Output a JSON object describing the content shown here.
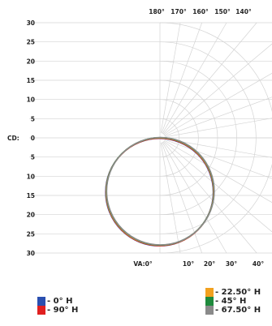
{
  "chart_data": {
    "type": "polar-photometric",
    "radial_label": "CD:",
    "radial_ticks": [
      "30",
      "25",
      "20",
      "15",
      "10",
      "5",
      "0",
      "5",
      "10",
      "15",
      "20",
      "25",
      "30"
    ],
    "angle_ticks_top": [
      "180°",
      "170°",
      "160°",
      "150°",
      "140°"
    ],
    "angle_ticks_bottom": [
      "VA:0°",
      "10°",
      "20°",
      "30°",
      "40°"
    ],
    "grid": true,
    "series": [
      {
        "name": "- 0° H",
        "color": "#2a4fb0",
        "shape": "circle",
        "center_cd": [
          0,
          -14
        ],
        "radius_cd": 14
      },
      {
        "name": "- 90° H",
        "color": "#e02020",
        "shape": "circle",
        "center_cd": [
          0,
          -14
        ],
        "radius_cd": 14
      },
      {
        "name": "- 22.50° H",
        "color": "#f2a11f",
        "shape": "circle",
        "center_cd": [
          0,
          -14
        ],
        "radius_cd": 14
      },
      {
        "name": "- 45° H",
        "color": "#1f8a3c",
        "shape": "circle",
        "center_cd": [
          0,
          -14
        ],
        "radius_cd": 14
      },
      {
        "name": "- 67.50° H",
        "color": "#8a8a8a",
        "shape": "circle",
        "center_cd": [
          0,
          -14
        ],
        "radius_cd": 14
      }
    ]
  }
}
